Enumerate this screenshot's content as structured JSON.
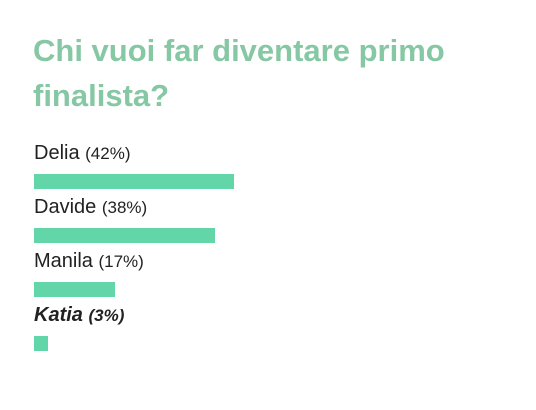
{
  "chart_data": {
    "type": "bar",
    "title": "Chi vuoi far diventare primo finalista?",
    "categories": [
      "Delia",
      "Davide",
      "Manila",
      "Katia"
    ],
    "values": [
      42,
      38,
      17,
      3
    ],
    "value_labels": [
      "(42%)",
      "(38%)",
      "(17%)",
      "(3%)"
    ],
    "color": "#62d6a8",
    "selected_index": 3
  }
}
